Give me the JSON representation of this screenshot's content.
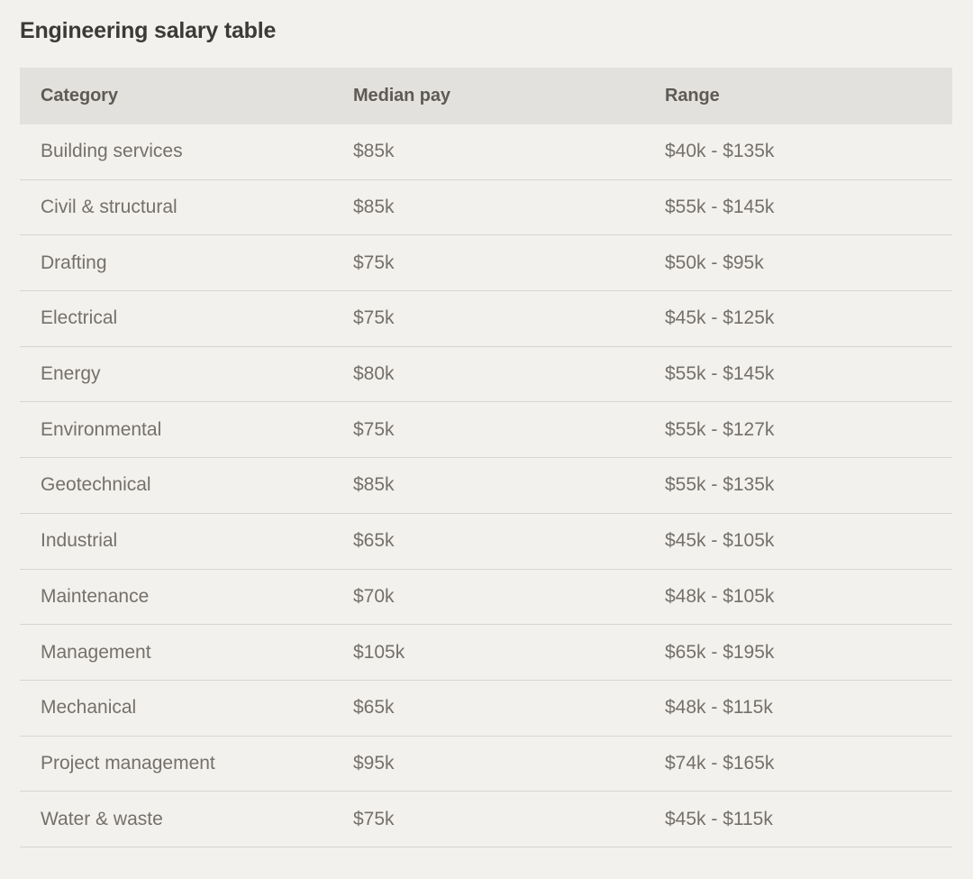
{
  "page_title": "Engineering salary table",
  "colors": {
    "page_background": "#f3f1ee",
    "header_background": "#e3e1dd",
    "divider": "#d8d5d1",
    "title_text": "#3c3a37",
    "header_text": "#5e5a55",
    "cell_text": "#74706a"
  },
  "chart_data": {
    "type": "table",
    "title": "Engineering salary table",
    "columns": [
      "Category",
      "Median pay",
      "Range"
    ],
    "rows": [
      [
        "Building services",
        "$85k",
        "$40k - $135k"
      ],
      [
        "Civil & structural",
        "$85k",
        "$55k - $145k"
      ],
      [
        "Drafting",
        "$75k",
        "$50k - $95k"
      ],
      [
        "Electrical",
        "$75k",
        "$45k - $125k"
      ],
      [
        "Energy",
        "$80k",
        "$55k - $145k"
      ],
      [
        "Environmental",
        "$75k",
        "$55k - $127k"
      ],
      [
        "Geotechnical",
        "$85k",
        "$55k - $135k"
      ],
      [
        "Industrial",
        "$65k",
        "$45k - $105k"
      ],
      [
        "Maintenance",
        "$70k",
        "$48k - $105k"
      ],
      [
        "Management",
        "$105k",
        "$65k - $195k"
      ],
      [
        "Mechanical",
        "$65k",
        "$48k - $115k"
      ],
      [
        "Project management",
        "$95k",
        "$74k - $165k"
      ],
      [
        "Water & waste",
        "$75k",
        "$45k - $115k"
      ]
    ]
  }
}
